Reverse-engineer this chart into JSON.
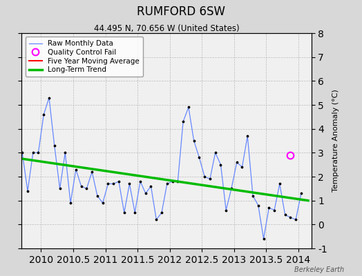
{
  "title": "RUMFORD 6SW",
  "subtitle": "44.495 N, 70.656 W (United States)",
  "ylabel": "Temperature Anomaly (°C)",
  "watermark": "Berkeley Earth",
  "xlim": [
    2009.7,
    2014.2
  ],
  "ylim": [
    -1,
    8
  ],
  "yticks": [
    -1,
    0,
    1,
    2,
    3,
    4,
    5,
    6,
    7,
    8
  ],
  "xticks": [
    2010,
    2010.5,
    2011,
    2011.5,
    2012,
    2012.5,
    2013,
    2013.5,
    2014
  ],
  "raw_x": [
    2009.708,
    2009.792,
    2009.875,
    2009.958,
    2010.042,
    2010.125,
    2010.208,
    2010.292,
    2010.375,
    2010.458,
    2010.542,
    2010.625,
    2010.708,
    2010.792,
    2010.875,
    2010.958,
    2011.042,
    2011.125,
    2011.208,
    2011.292,
    2011.375,
    2011.458,
    2011.542,
    2011.625,
    2011.708,
    2011.792,
    2011.875,
    2011.958,
    2012.042,
    2012.125,
    2012.208,
    2012.292,
    2012.375,
    2012.458,
    2012.542,
    2012.625,
    2012.708,
    2012.792,
    2012.875,
    2012.958,
    2013.042,
    2013.125,
    2013.208,
    2013.292,
    2013.375,
    2013.458,
    2013.542,
    2013.625,
    2013.708,
    2013.792,
    2013.875,
    2013.958,
    2014.042
  ],
  "raw_y": [
    3.0,
    1.4,
    3.0,
    3.0,
    4.6,
    5.3,
    3.3,
    1.5,
    3.0,
    0.9,
    2.3,
    1.6,
    1.5,
    2.2,
    1.2,
    0.9,
    1.7,
    1.7,
    1.8,
    0.5,
    1.7,
    0.5,
    1.8,
    1.3,
    1.6,
    0.2,
    0.5,
    1.7,
    1.8,
    1.8,
    4.3,
    4.9,
    3.5,
    2.8,
    2.0,
    1.9,
    3.0,
    2.5,
    0.6,
    1.5,
    2.6,
    2.4,
    3.7,
    1.2,
    0.8,
    -0.6,
    0.7,
    0.6,
    1.7,
    0.4,
    0.3,
    0.2,
    1.3
  ],
  "trend_x": [
    2009.7,
    2014.15
  ],
  "trend_y": [
    2.75,
    1.0
  ],
  "qc_fail_x": [
    2013.875
  ],
  "qc_fail_y": [
    2.9
  ],
  "bg_color": "#d8d8d8",
  "plot_bg_color": "#f0f0f0",
  "raw_line_color": "#6688ff",
  "trend_color": "#00bb00",
  "qc_color": "#ff00ff",
  "five_yr_color": "#ff0000",
  "legend_bg": "#ffffff"
}
